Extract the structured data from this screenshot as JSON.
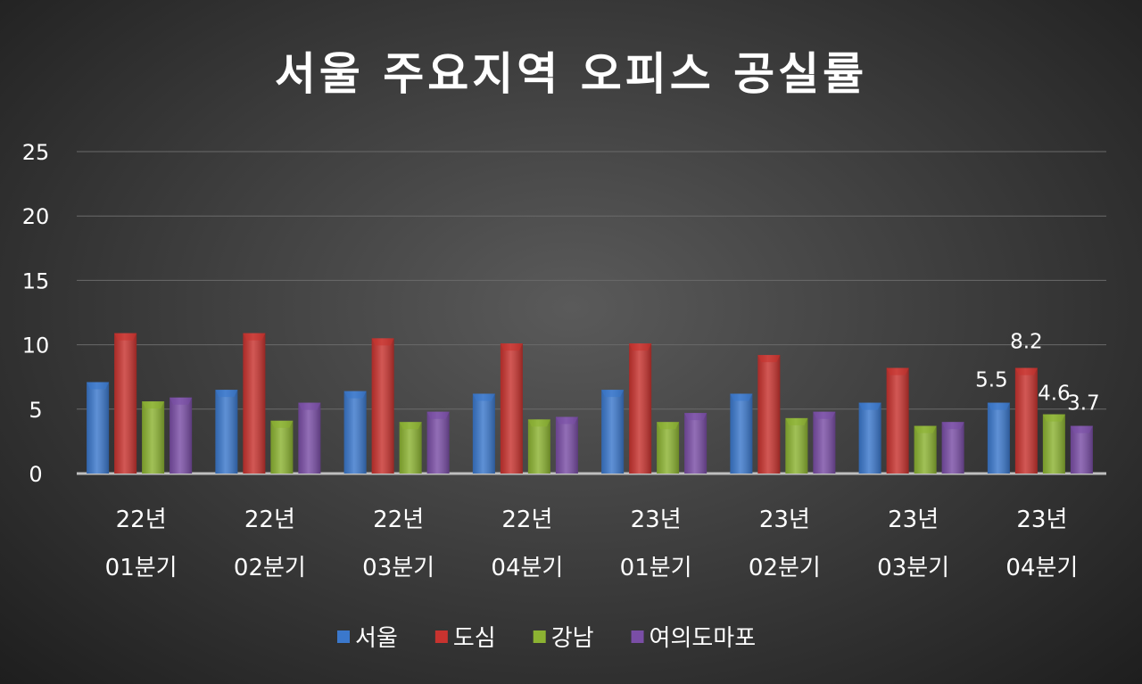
{
  "chart_data": {
    "type": "bar",
    "title": "서울 주요지역 오피스 공실률",
    "categories": [
      [
        "22년",
        "01분기"
      ],
      [
        "22년",
        "02분기"
      ],
      [
        "22년",
        "03분기"
      ],
      [
        "22년",
        "04분기"
      ],
      [
        "23년",
        "01분기"
      ],
      [
        "23년",
        "02분기"
      ],
      [
        "23년",
        "03분기"
      ],
      [
        "23년",
        "04분기"
      ]
    ],
    "series": [
      {
        "name": "서울",
        "color": "#3b78cc",
        "values": [
          7.1,
          6.5,
          6.4,
          6.2,
          6.5,
          6.2,
          5.5,
          5.5
        ]
      },
      {
        "name": "도심",
        "color": "#c8332f",
        "values": [
          10.9,
          10.9,
          10.5,
          10.1,
          10.1,
          9.2,
          8.2,
          8.2
        ]
      },
      {
        "name": "강남",
        "color": "#8cb332",
        "values": [
          5.6,
          4.1,
          4.0,
          4.2,
          4.0,
          4.3,
          3.7,
          4.6
        ]
      },
      {
        "name": "여의도마포",
        "color": "#7a4ea6",
        "values": [
          5.9,
          5.5,
          4.8,
          4.4,
          4.7,
          4.8,
          4.0,
          3.7
        ]
      }
    ],
    "data_labels": {
      "category_index": 7,
      "labels": [
        "5.5",
        "8.2",
        "4.6",
        "3.7"
      ]
    },
    "yticks": [
      "0",
      "5",
      "10",
      "15",
      "20",
      "25"
    ],
    "ylim": [
      0,
      25
    ],
    "grid": true,
    "legend": "bottom"
  }
}
